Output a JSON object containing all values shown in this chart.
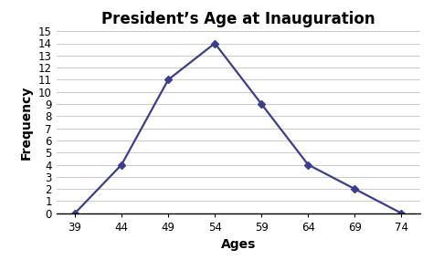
{
  "title": "President’s Age at Inauguration",
  "xlabel": "Ages",
  "ylabel": "Frequency",
  "x": [
    39,
    44,
    49,
    54,
    59,
    64,
    69,
    74
  ],
  "y": [
    0,
    4,
    11,
    14,
    9,
    4,
    2,
    0
  ],
  "line_color": "#3d3d8f",
  "marker": "D",
  "marker_size": 4,
  "ylim": [
    0,
    15
  ],
  "yticks": [
    0,
    1,
    2,
    3,
    4,
    5,
    6,
    7,
    8,
    9,
    10,
    11,
    12,
    13,
    14,
    15
  ],
  "xticks": [
    39,
    44,
    49,
    54,
    59,
    64,
    69,
    74
  ],
  "background_color": "#ffffff",
  "grid_color": "#cccccc",
  "title_fontsize": 12,
  "label_fontsize": 10,
  "tick_fontsize": 8.5
}
